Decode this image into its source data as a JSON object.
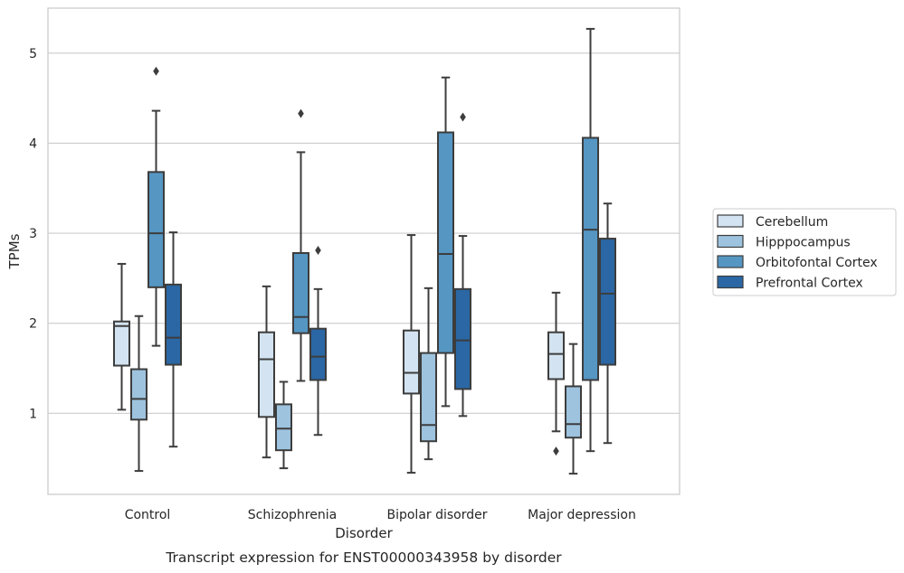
{
  "chart_data": {
    "type": "boxplot",
    "caption": "Transcript expression for ENST00000343958 by disorder",
    "xlabel": "Disorder",
    "ylabel": "TPMs",
    "ylim": [
      0.1,
      5.5
    ],
    "yticks": [
      1,
      2,
      3,
      4,
      5
    ],
    "grid": "horizontal",
    "legend_position": "right",
    "categories": [
      "Control",
      "Schizophrenia",
      "Bipolar disorder",
      "Major depression"
    ],
    "series": [
      {
        "name": "Cerebellum",
        "color": "#d3e3f1",
        "boxes": [
          {
            "whisker_low": 1.04,
            "q1": 1.53,
            "median": 1.97,
            "q3": 2.02,
            "whisker_high": 2.66,
            "outliers": []
          },
          {
            "whisker_low": 0.51,
            "q1": 0.96,
            "median": 1.6,
            "q3": 1.9,
            "whisker_high": 2.41,
            "outliers": []
          },
          {
            "whisker_low": 0.34,
            "q1": 1.22,
            "median": 1.45,
            "q3": 1.92,
            "whisker_high": 2.98,
            "outliers": []
          },
          {
            "whisker_low": 0.8,
            "q1": 1.38,
            "median": 1.66,
            "q3": 1.9,
            "whisker_high": 2.34,
            "outliers": [
              0.58
            ]
          }
        ]
      },
      {
        "name": "Hipppocampus",
        "color": "#9dc3de",
        "boxes": [
          {
            "whisker_low": 0.36,
            "q1": 0.93,
            "median": 1.16,
            "q3": 1.49,
            "whisker_high": 2.08,
            "outliers": []
          },
          {
            "whisker_low": 0.39,
            "q1": 0.59,
            "median": 0.83,
            "q3": 1.1,
            "whisker_high": 1.35,
            "outliers": []
          },
          {
            "whisker_low": 0.49,
            "q1": 0.69,
            "median": 0.87,
            "q3": 1.67,
            "whisker_high": 2.39,
            "outliers": []
          },
          {
            "whisker_low": 0.33,
            "q1": 0.73,
            "median": 0.88,
            "q3": 1.3,
            "whisker_high": 1.77,
            "outliers": []
          }
        ]
      },
      {
        "name": "Orbitofontal Cortex",
        "color": "#5596c3",
        "boxes": [
          {
            "whisker_low": 1.75,
            "q1": 2.4,
            "median": 3.0,
            "q3": 3.68,
            "whisker_high": 4.36,
            "outliers": [
              4.8
            ]
          },
          {
            "whisker_low": 1.36,
            "q1": 1.89,
            "median": 2.07,
            "q3": 2.78,
            "whisker_high": 3.9,
            "outliers": [
              4.33
            ]
          },
          {
            "whisker_low": 1.08,
            "q1": 1.67,
            "median": 2.77,
            "q3": 4.12,
            "whisker_high": 4.73,
            "outliers": []
          },
          {
            "whisker_low": 0.58,
            "q1": 1.37,
            "median": 3.04,
            "q3": 4.06,
            "whisker_high": 5.27,
            "outliers": []
          }
        ]
      },
      {
        "name": "Prefrontal Cortex",
        "color": "#2a67a4",
        "boxes": [
          {
            "whisker_low": 0.63,
            "q1": 1.54,
            "median": 1.84,
            "q3": 2.43,
            "whisker_high": 3.01,
            "outliers": []
          },
          {
            "whisker_low": 0.76,
            "q1": 1.37,
            "median": 1.63,
            "q3": 1.94,
            "whisker_high": 2.38,
            "outliers": [
              2.81
            ]
          },
          {
            "whisker_low": 0.97,
            "q1": 1.27,
            "median": 1.81,
            "q3": 2.38,
            "whisker_high": 2.97,
            "outliers": [
              4.29
            ]
          },
          {
            "whisker_low": 0.67,
            "q1": 1.54,
            "median": 2.33,
            "q3": 2.94,
            "whisker_high": 3.33,
            "outliers": []
          }
        ]
      }
    ]
  }
}
